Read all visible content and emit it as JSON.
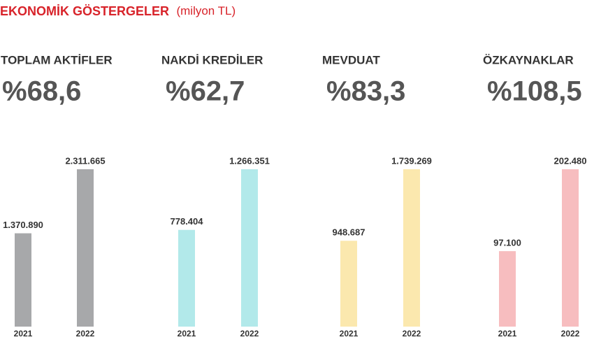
{
  "title": "EKONOMİK GÖSTERGELER",
  "unit": "(milyon TL)",
  "chart_data": [
    {
      "type": "bar",
      "title": "TOPLAM AKTİFLER",
      "change": "%68,6",
      "categories": [
        "2021",
        "2022"
      ],
      "values": [
        1370890,
        2311665
      ],
      "value_labels": [
        "1.370.890",
        "2.311.665"
      ],
      "color": "#a7a8aa",
      "ylim": [
        0,
        2311665
      ]
    },
    {
      "type": "bar",
      "title": "NAKDİ KREDİLER",
      "change": "%62,7",
      "categories": [
        "2021",
        "2022"
      ],
      "values": [
        778404,
        1266351
      ],
      "value_labels": [
        "778.404",
        "1.266.351"
      ],
      "color": "#b2e9ea",
      "ylim": [
        0,
        1266351
      ]
    },
    {
      "type": "bar",
      "title": "MEVDUAT",
      "change": "%83,3",
      "categories": [
        "2021",
        "2022"
      ],
      "values": [
        948687,
        1739269
      ],
      "value_labels": [
        "948.687",
        "1.739.269"
      ],
      "color": "#fbe8ae",
      "ylim": [
        0,
        1739269
      ]
    },
    {
      "type": "bar",
      "title": "ÖZKAYNAKLAR",
      "change": "%108,5",
      "categories": [
        "2021",
        "2022"
      ],
      "values": [
        97100,
        202480
      ],
      "value_labels": [
        "97.100",
        "202.480"
      ],
      "color": "#f7bdbf",
      "ylim": [
        0,
        202480
      ]
    }
  ]
}
